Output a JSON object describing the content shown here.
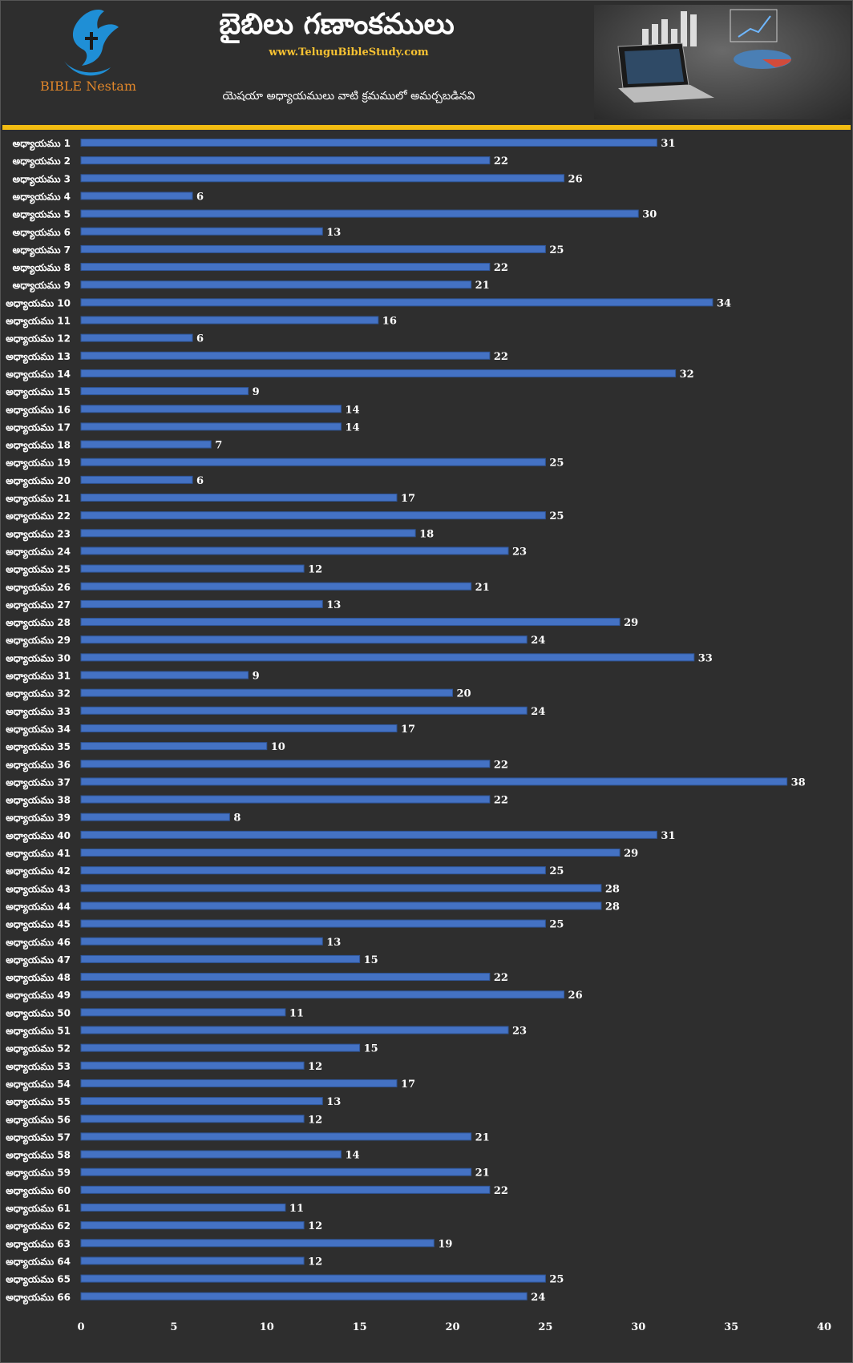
{
  "header": {
    "title": "బైబిలు గణాంకములు",
    "site": "www.TeluguBibleStudy.com",
    "subtitle": "యెషయా అధ్యాయములు వాటి క్రమములో అమర్చబడినవి",
    "logo_text": "BIBLE Nestam"
  },
  "colors": {
    "background": "#2e2e2e",
    "bar": "#4472c4",
    "accent": "#f3bd12"
  },
  "chart_data": {
    "type": "bar",
    "orientation": "horizontal",
    "categories": [
      "అధ్యాయము 1",
      "అధ్యాయము 2",
      "అధ్యాయము 3",
      "అధ్యాయము 4",
      "అధ్యాయము 5",
      "అధ్యాయము 6",
      "అధ్యాయము 7",
      "అధ్యాయము 8",
      "అధ్యాయము 9",
      "అధ్యాయము 10",
      "అధ్యాయము 11",
      "అధ్యాయము 12",
      "అధ్యాయము 13",
      "అధ్యాయము 14",
      "అధ్యాయము 15",
      "అధ్యాయము 16",
      "అధ్యాయము 17",
      "అధ్యాయము 18",
      "అధ్యాయము 19",
      "అధ్యాయము 20",
      "అధ్యాయము 21",
      "అధ్యాయము 22",
      "అధ్యాయము 23",
      "అధ్యాయము 24",
      "అధ్యాయము 25",
      "అధ్యాయము 26",
      "అధ్యాయము 27",
      "అధ్యాయము 28",
      "అధ్యాయము 29",
      "అధ్యాయము 30",
      "అధ్యాయము 31",
      "అధ్యాయము 32",
      "అధ్యాయము 33",
      "అధ్యాయము 34",
      "అధ్యాయము 35",
      "అధ్యాయము 36",
      "అధ్యాయము 37",
      "అధ్యాయము 38",
      "అధ్యాయము 39",
      "అధ్యాయము 40",
      "అధ్యాయము 41",
      "అధ్యాయము 42",
      "అధ్యాయము 43",
      "అధ్యాయము 44",
      "అధ్యాయము 45",
      "అధ్యాయము 46",
      "అధ్యాయము 47",
      "అధ్యాయము 48",
      "అధ్యాయము 49",
      "అధ్యాయము 50",
      "అధ్యాయము 51",
      "అధ్యాయము 52",
      "అధ్యాయము 53",
      "అధ్యాయము 54",
      "అధ్యాయము 55",
      "అధ్యాయము 56",
      "అధ్యాయము 57",
      "అధ్యాయము 58",
      "అధ్యాయము 59",
      "అధ్యాయము 60",
      "అధ్యాయము 61",
      "అధ్యాయము 62",
      "అధ్యాయము 63",
      "అధ్యాయము 64",
      "అధ్యాయము 65",
      "అధ్యాయము 66"
    ],
    "values": [
      31,
      22,
      26,
      6,
      30,
      13,
      25,
      22,
      21,
      34,
      16,
      6,
      22,
      32,
      9,
      14,
      14,
      7,
      25,
      6,
      17,
      25,
      18,
      23,
      12,
      21,
      13,
      29,
      24,
      33,
      9,
      20,
      24,
      17,
      10,
      22,
      38,
      22,
      8,
      31,
      29,
      25,
      28,
      28,
      25,
      13,
      15,
      22,
      26,
      11,
      23,
      15,
      12,
      17,
      13,
      12,
      21,
      14,
      21,
      22,
      11,
      12,
      19,
      12,
      25,
      24
    ],
    "xlim": [
      0,
      40
    ],
    "xticks": [
      0,
      5,
      10,
      15,
      20,
      25,
      30,
      35,
      40
    ],
    "grid": false,
    "legend": "none",
    "title": "బైబిలు గణాంకములు"
  }
}
